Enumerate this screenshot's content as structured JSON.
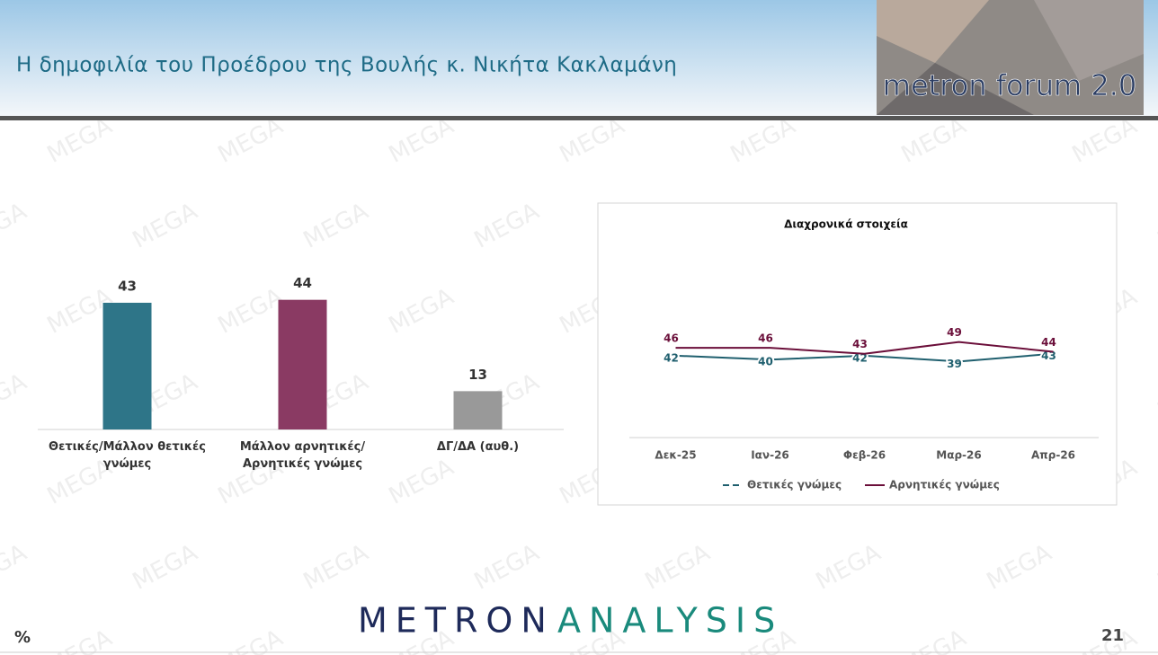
{
  "header": {
    "title": "Η δημοφιλία του Προέδρου της Βουλής κ. Νικήτα Κακλαμάνη",
    "logo": "metron forum 2.0"
  },
  "watermark": "MEGA",
  "chart_data": [
    {
      "type": "bar",
      "categories": [
        "Θετικές/Μάλλον θετικές γνώμες",
        "Μάλλον αρνητικές/Αρνητικές γνώμες",
        "ΔΓ/ΔΑ (αυθ.)"
      ],
      "values": [
        43,
        44,
        13
      ],
      "colors": [
        "#2e7588",
        "#8a3a63",
        "#999999"
      ],
      "ylim": [
        0,
        50
      ]
    },
    {
      "type": "line",
      "title": "Διαχρονικά στοιχεία",
      "categories": [
        "Δεκ-25",
        "Ιαν-26",
        "Φεβ-26",
        "Μαρ-26",
        "Απρ-26"
      ],
      "series": [
        {
          "name": "Θετικές γνώμες",
          "color": "#1f5f6e",
          "values": [
            42,
            40,
            42,
            39,
            43
          ]
        },
        {
          "name": "Αρνητικές γνώμες",
          "color": "#6b0f3a",
          "values": [
            46,
            46,
            43,
            49,
            44
          ]
        }
      ],
      "ylim": [
        0,
        100
      ],
      "legend": "bottom"
    }
  ],
  "footer": {
    "brand_left": "METRON",
    "brand_right": "ANALYSIS",
    "unit": "%",
    "page": "21"
  }
}
